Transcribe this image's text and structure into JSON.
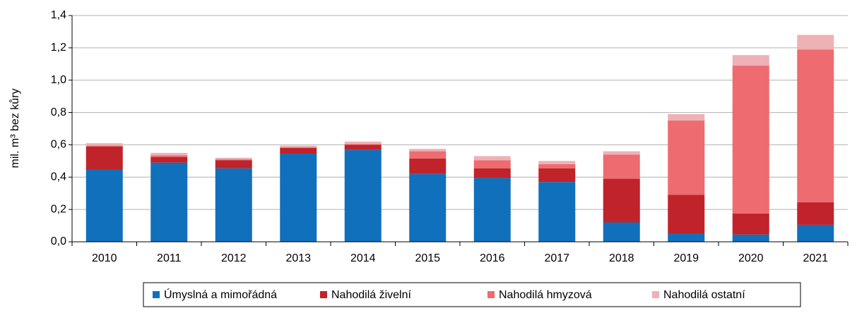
{
  "chart_data": {
    "type": "stacked_bar",
    "y_label": "mil. m³ bez kůry",
    "categories": [
      "2010",
      "2011",
      "2012",
      "2013",
      "2014",
      "2015",
      "2016",
      "2017",
      "2018",
      "2019",
      "2020",
      "2021"
    ],
    "series": [
      {
        "name": "Úmyslná a mimořádná",
        "color": "#1170bb",
        "values": [
          0.445,
          0.49,
          0.455,
          0.545,
          0.57,
          0.42,
          0.395,
          0.37,
          0.12,
          0.05,
          0.045,
          0.105
        ]
      },
      {
        "name": "Nahodilá živelní",
        "color": "#c0232a",
        "values": [
          0.145,
          0.035,
          0.05,
          0.035,
          0.03,
          0.095,
          0.06,
          0.085,
          0.27,
          0.24,
          0.13,
          0.14
        ]
      },
      {
        "name": "Nahodilá hmyzová",
        "color": "#ee6b70",
        "values": [
          0.005,
          0.01,
          0.005,
          0.005,
          0.005,
          0.045,
          0.05,
          0.025,
          0.15,
          0.46,
          0.915,
          0.945
        ]
      },
      {
        "name": "Nahodilá ostatní",
        "color": "#eeb1b6",
        "values": [
          0.015,
          0.015,
          0.01,
          0.01,
          0.015,
          0.015,
          0.025,
          0.02,
          0.02,
          0.04,
          0.065,
          0.09
        ]
      }
    ],
    "ylim": [
      0,
      1.4
    ],
    "yticks": [
      {
        "value": 0,
        "label": "0,0"
      },
      {
        "value": 0.2,
        "label": "0,2"
      },
      {
        "value": 0.4,
        "label": "0,4"
      },
      {
        "value": 0.6,
        "label": "0,6"
      },
      {
        "value": 0.8,
        "label": "0,8"
      },
      {
        "value": 1.0,
        "label": "1,0"
      },
      {
        "value": 1.2,
        "label": "1,2"
      },
      {
        "value": 1.4,
        "label": "1,4"
      }
    ],
    "grid": true,
    "legend": "bottom"
  }
}
